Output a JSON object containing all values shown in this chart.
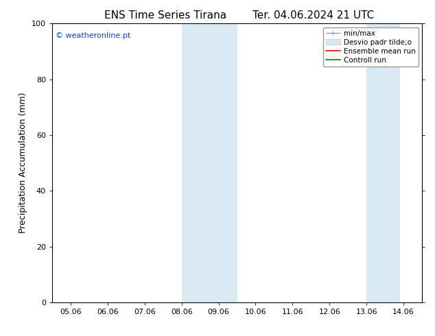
{
  "title_left": "ENS Time Series Tirana",
  "title_right": "Ter. 04.06.2024 21 UTC",
  "ylabel": "Precipitation Accumulation (mm)",
  "ylim": [
    0,
    100
  ],
  "yticks": [
    0,
    20,
    40,
    60,
    80,
    100
  ],
  "xtick_labels": [
    "05.06",
    "06.06",
    "07.06",
    "08.06",
    "09.06",
    "10.06",
    "11.06",
    "12.06",
    "13.06",
    "14.06"
  ],
  "xtick_positions": [
    0,
    1,
    2,
    3,
    4,
    5,
    6,
    7,
    8,
    9
  ],
  "xlim": [
    -0.5,
    9.5
  ],
  "shaded_regions": [
    {
      "x_start": 3.0,
      "x_end": 4.5,
      "color": "#daeaf5"
    },
    {
      "x_start": 8.0,
      "x_end": 8.9,
      "color": "#daeaf5"
    }
  ],
  "watermark_text": "© weatheronline.pt",
  "watermark_color": "#0044cc",
  "bg_color": "#ffffff",
  "spine_color": "#000000",
  "title_fontsize": 11,
  "tick_fontsize": 8,
  "ylabel_fontsize": 9,
  "legend_fontsize": 7.5
}
